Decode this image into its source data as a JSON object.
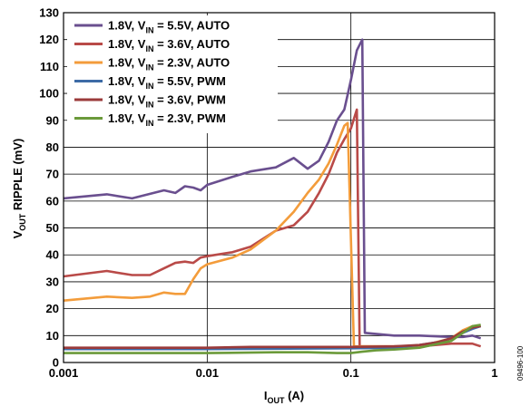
{
  "chart_data": {
    "type": "line",
    "x_scale": "log",
    "xlim": [
      0.001,
      1
    ],
    "ylim": [
      0,
      130
    ],
    "x_ticks": [
      "0.001",
      "0.01",
      "0.1",
      "1"
    ],
    "x_tick_values": [
      0.001,
      0.01,
      0.1,
      1
    ],
    "y_ticks": [
      "0",
      "10",
      "20",
      "30",
      "40",
      "50",
      "60",
      "70",
      "80",
      "90",
      "100",
      "110",
      "120",
      "130"
    ],
    "y_tick_values": [
      0,
      10,
      20,
      30,
      40,
      50,
      60,
      70,
      80,
      90,
      100,
      110,
      120,
      130
    ],
    "grid": "decades",
    "xlabel": {
      "main": "I",
      "sub": "OUT",
      "unit": " (A)"
    },
    "ylabel": {
      "main": "V",
      "sub": "OUT",
      "rest": " RIPPLE (mV)"
    },
    "legend_position": "top-left",
    "side_note": "09496-100",
    "series": [
      {
        "name": "1.8V, V_IN = 5.5V, AUTO",
        "label": {
          "a": "1.8V, V",
          "sub": "IN",
          "b": " = 5.5V, AUTO"
        },
        "color": "#6a4f8f",
        "x": [
          0.001,
          0.002,
          0.003,
          0.005,
          0.006,
          0.007,
          0.008,
          0.009,
          0.01,
          0.015,
          0.02,
          0.03,
          0.04,
          0.05,
          0.06,
          0.07,
          0.08,
          0.09,
          0.1,
          0.11,
          0.12,
          0.125,
          0.2,
          0.3,
          0.5,
          0.6,
          0.7,
          0.8
        ],
        "y": [
          61,
          62.5,
          61,
          64,
          63,
          65.5,
          65,
          64,
          66,
          69,
          71,
          72.5,
          76,
          72,
          75,
          82,
          90,
          94,
          105,
          116,
          120,
          11,
          10,
          10,
          9.5,
          9.5,
          10,
          9
        ]
      },
      {
        "name": "1.8V, V_IN = 3.6V, AUTO",
        "label": {
          "a": "1.8V, V",
          "sub": "IN",
          "b": " = 3.6V, AUTO"
        },
        "color": "#b94a48",
        "x": [
          0.001,
          0.002,
          0.003,
          0.004,
          0.005,
          0.006,
          0.007,
          0.008,
          0.009,
          0.01,
          0.015,
          0.02,
          0.03,
          0.04,
          0.05,
          0.06,
          0.07,
          0.08,
          0.09,
          0.1,
          0.11,
          0.115,
          0.12,
          0.2,
          0.3,
          0.5,
          0.6,
          0.7,
          0.8
        ],
        "y": [
          32,
          34,
          32.5,
          32.5,
          35,
          37,
          37.5,
          37,
          39,
          39.5,
          41,
          43,
          49,
          51,
          56,
          63,
          70,
          78,
          83,
          87,
          94,
          6,
          6,
          6,
          6,
          7,
          7,
          7,
          6
        ]
      },
      {
        "name": "1.8V, V_IN = 2.3V, AUTO",
        "label": {
          "a": "1.8V, V",
          "sub": "IN",
          "b": " = 2.3V, AUTO"
        },
        "color": "#f39c3b",
        "x": [
          0.001,
          0.002,
          0.003,
          0.004,
          0.005,
          0.006,
          0.007,
          0.008,
          0.009,
          0.01,
          0.015,
          0.02,
          0.03,
          0.04,
          0.05,
          0.06,
          0.07,
          0.08,
          0.09,
          0.095,
          0.105,
          0.2,
          0.3,
          0.5,
          0.6,
          0.7,
          0.8
        ],
        "y": [
          23,
          24.5,
          24,
          24.5,
          26,
          25.5,
          25.5,
          31,
          35,
          36.5,
          39,
          42,
          49,
          56,
          63,
          68,
          74,
          81,
          88,
          89,
          6,
          6,
          6,
          9,
          12,
          13.5,
          13.5
        ]
      },
      {
        "name": "1.8V, V_IN = 5.5V, PWM",
        "label": {
          "a": "1.8V, V",
          "sub": "IN",
          "b": " = 5.5V, PWM"
        },
        "color": "#3d6ba6",
        "x": [
          0.001,
          0.01,
          0.05,
          0.1,
          0.2,
          0.3,
          0.4,
          0.5,
          0.6,
          0.7,
          0.8
        ],
        "y": [
          5,
          5,
          5.2,
          5.3,
          5.5,
          6.5,
          7.5,
          9,
          11,
          12.5,
          13.5
        ]
      },
      {
        "name": "1.8V, V_IN = 3.6V, PWM",
        "label": {
          "a": "1.8V, V",
          "sub": "IN",
          "b": " = 3.6V, PWM"
        },
        "color": "#9b3a3a",
        "x": [
          0.001,
          0.01,
          0.02,
          0.05,
          0.1,
          0.2,
          0.3,
          0.4,
          0.5,
          0.6,
          0.7,
          0.8
        ],
        "y": [
          5.5,
          5.5,
          5.8,
          5.8,
          5.8,
          6,
          6.5,
          7.5,
          9,
          11.5,
          13,
          13.5
        ]
      },
      {
        "name": "1.8V, V_IN = 2.3V, PWM",
        "label": {
          "a": "1.8V, V",
          "sub": "IN",
          "b": " = 2.3V, PWM"
        },
        "color": "#6b9a3a",
        "x": [
          0.001,
          0.01,
          0.03,
          0.05,
          0.08,
          0.1,
          0.12,
          0.15,
          0.2,
          0.3,
          0.5,
          0.6,
          0.7,
          0.8
        ],
        "y": [
          3.5,
          3.5,
          3.8,
          3.8,
          3.5,
          3.5,
          4,
          4.5,
          4.8,
          5.5,
          8,
          11,
          13.5,
          14
        ]
      }
    ]
  }
}
